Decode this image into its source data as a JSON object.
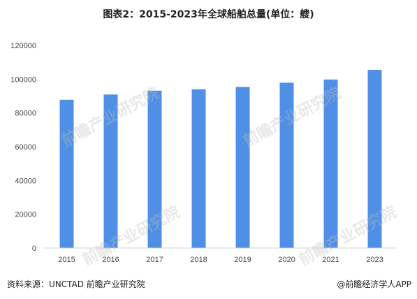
{
  "title": "图表2：2015-2023年全球船舶总量(单位：艘)",
  "source": "资料来源：UNCTAD 前瞻产业研究院",
  "brand": "@前瞻经济学人APP",
  "watermark": "前瞻产业研究院",
  "colors": {
    "bar": "#4f8fe6",
    "axis": "#d0d0d0"
  },
  "chart_data": {
    "type": "bar",
    "title": "图表2：2015-2023年全球船舶总量(单位：艘)",
    "xlabel": "",
    "ylabel": "",
    "categories": [
      "2015",
      "2016",
      "2017",
      "2018",
      "2019",
      "2020",
      "2021",
      "2023"
    ],
    "values": [
      87800,
      90900,
      93200,
      94000,
      95400,
      97900,
      99800,
      105500
    ],
    "ylim": [
      0,
      120000
    ],
    "yticks": [
      0,
      20000,
      40000,
      60000,
      80000,
      100000,
      120000
    ],
    "grid": false,
    "legend": "none"
  }
}
